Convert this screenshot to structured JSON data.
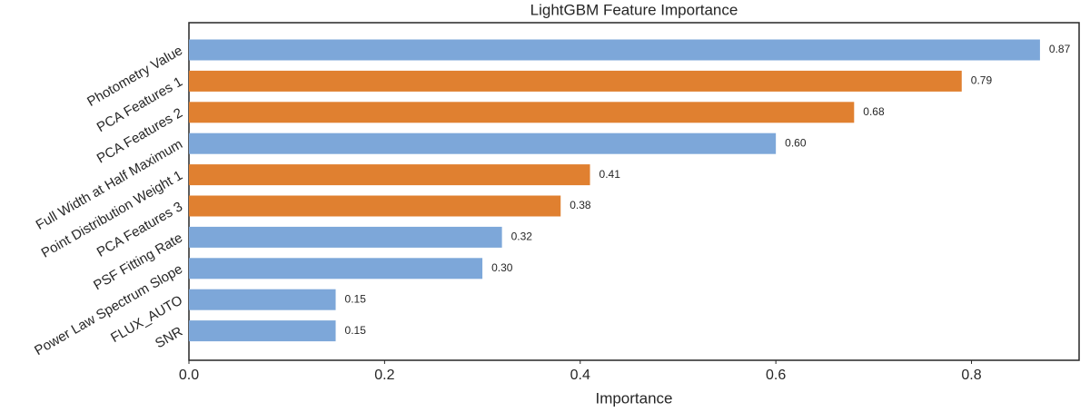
{
  "chart_data": {
    "type": "barh",
    "title": "LightGBM Feature Importance",
    "x_label": "Importance",
    "categories": [
      "Photometry Value",
      "PCA Features 1",
      "PCA Features 2",
      "Full Width at Half Maximum",
      "Point Distribution Weight 1",
      "PCA Features 3",
      "PSF Fitting Rate",
      "Power Law Spectrum Slope",
      "FLUX_AUTO",
      "SNR"
    ],
    "values": [
      0.87,
      0.79,
      0.68,
      0.6,
      0.41,
      0.38,
      0.32,
      0.3,
      0.15,
      0.15
    ],
    "value_labels": [
      "0.87",
      "0.79",
      "0.68",
      "0.60",
      "0.41",
      "0.38",
      "0.32",
      "0.30",
      "0.15",
      "0.15"
    ],
    "colors": [
      "#7da7d9",
      "#e08030",
      "#e08030",
      "#7da7d9",
      "#e08030",
      "#e08030",
      "#7da7d9",
      "#7da7d9",
      "#7da7d9",
      "#7da7d9"
    ],
    "xlim": [
      0,
      0.91
    ],
    "xticks": [
      {
        "value": 0,
        "label": "0.0"
      },
      0.2,
      0.4,
      0.6,
      0.8
    ]
  }
}
